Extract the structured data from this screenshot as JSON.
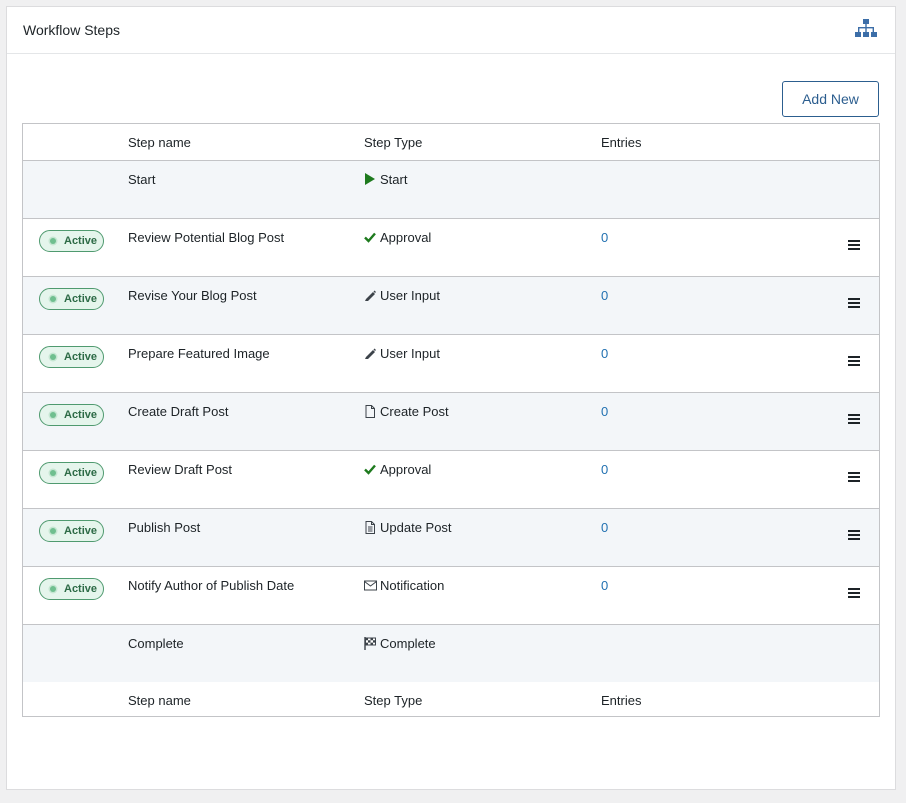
{
  "header": {
    "title": "Workflow Steps"
  },
  "button": {
    "label": "Add New"
  },
  "table": {
    "columns": [
      "Step name",
      "Step Type",
      "Entries"
    ],
    "rows": [
      {
        "name": "Start",
        "type": "Start"
      },
      {
        "status": "Active",
        "name": "Review Potential Blog Post",
        "type": "Approval",
        "entries": 0
      },
      {
        "status": "Active",
        "name": "Revise Your Blog Post",
        "type": "User Input",
        "entries": 0
      },
      {
        "status": "Active",
        "name": "Prepare Featured Image",
        "type": "User Input",
        "entries": 0
      },
      {
        "status": "Active",
        "name": "Create Draft Post",
        "type": "Create Post",
        "entries": 0
      },
      {
        "status": "Active",
        "name": "Review Draft Post",
        "type": "Approval",
        "entries": 0
      },
      {
        "status": "Active",
        "name": "Publish Post",
        "type": "Update Post",
        "entries": 0
      },
      {
        "status": "Active",
        "name": "Notify Author of Publish Date",
        "type": "Notification",
        "entries": 0
      },
      {
        "name": "Complete",
        "type": "Complete"
      }
    ]
  }
}
